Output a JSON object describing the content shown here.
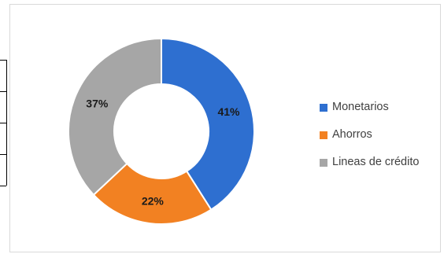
{
  "chart_data": {
    "type": "donut",
    "title": "",
    "categories": [
      "Monetarios",
      "Ahorros",
      "Lineas de crédito"
    ],
    "values": [
      41,
      22,
      37
    ],
    "data_labels": [
      "41%",
      "22%",
      "37%"
    ],
    "unit": "%",
    "colors": [
      "#2e6fd0",
      "#f28122",
      "#a6a6a6"
    ],
    "legend_position": "right",
    "label_color": "#1a1a1a"
  }
}
